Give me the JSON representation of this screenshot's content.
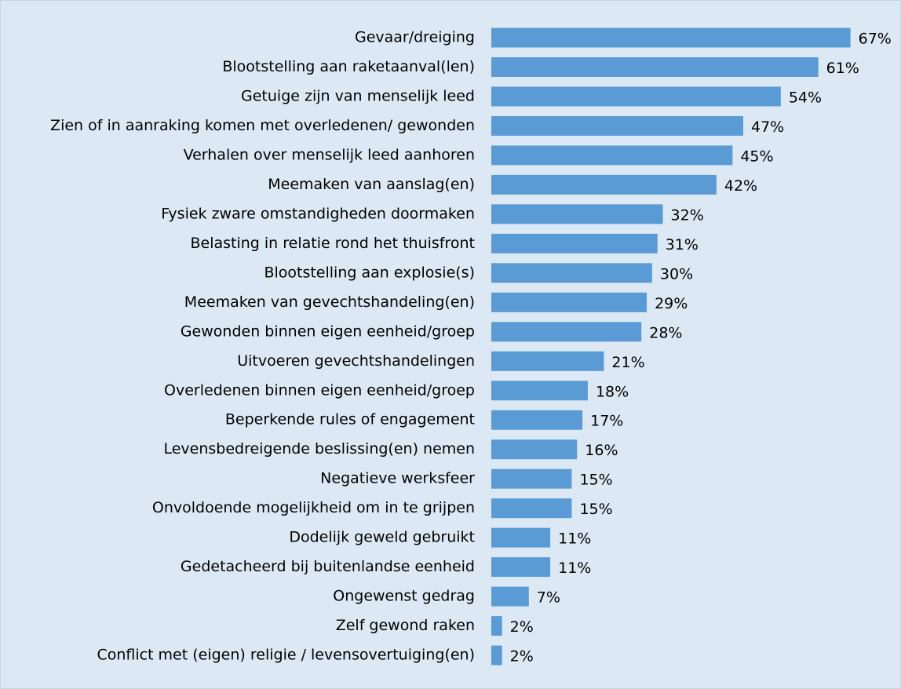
{
  "chart_data": {
    "type": "bar",
    "orientation": "horizontal",
    "color": "#5b9bd5",
    "categories": [
      "Gevaar/dreiging",
      "Blootstelling aan raketaanval(len)",
      "Getuige zijn van menselijk leed",
      "Zien of in aanraking komen met overledenen/ gewonden",
      "Verhalen over menselijk leed aanhoren",
      "Meemaken van aanslag(en)",
      "Fysiek zware omstandigheden doormaken",
      "Belasting in relatie rond het thuisfront",
      "Blootstelling aan explosie(s)",
      "Meemaken van gevechtshandeling(en)",
      "Gewonden binnen eigen eenheid/groep",
      "Uitvoeren gevechtshandelingen",
      "Overledenen binnen eigen eenheid/groep",
      "Beperkende rules of engagement",
      "Levensbedreigende beslissing(en) nemen",
      "Negatieve werksfeer",
      "Onvoldoende mogelijkheid om in te grijpen",
      "Dodelijk geweld gebruikt",
      "Gedetacheerd bij buitenlandse eenheid",
      "Ongewenst gedrag",
      "Zelf gewond raken",
      "Conflict met (eigen) religie / levensovertuiging(en)"
    ],
    "values": [
      67,
      61,
      54,
      47,
      45,
      42,
      32,
      31,
      30,
      29,
      28,
      21,
      18,
      17,
      16,
      15,
      15,
      11,
      11,
      7,
      2,
      2
    ],
    "value_labels": [
      "67%",
      "61%",
      "54%",
      "47%",
      "45%",
      "42%",
      "32%",
      "31%",
      "30%",
      "29%",
      "28%",
      "21%",
      "18%",
      "17%",
      "16%",
      "15%",
      "15%",
      "11%",
      "11%",
      "7%",
      "2%",
      "2%"
    ]
  }
}
